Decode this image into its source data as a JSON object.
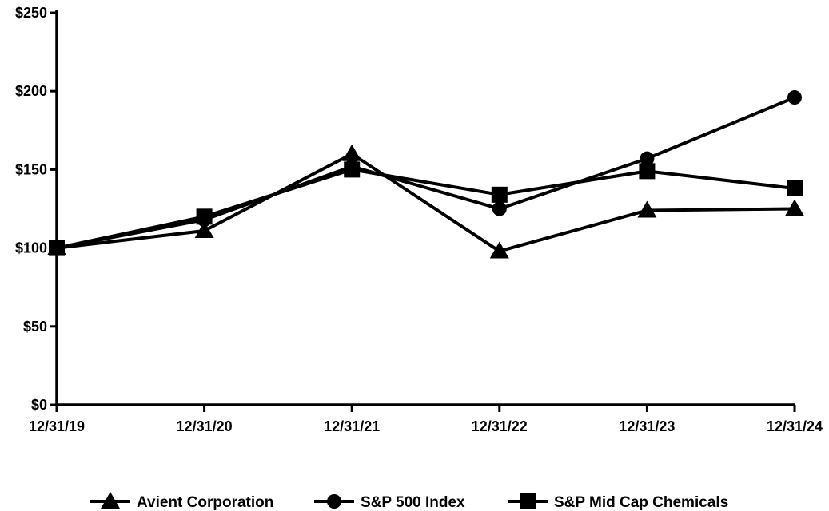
{
  "chart_data": {
    "type": "line",
    "title": "",
    "xlabel": "",
    "ylabel": "",
    "categories": [
      "12/31/19",
      "12/31/20",
      "12/31/21",
      "12/31/22",
      "12/31/23",
      "12/31/24"
    ],
    "ylim": [
      0,
      250
    ],
    "yticks": [
      0,
      50,
      100,
      150,
      200,
      250
    ],
    "ytick_labels": [
      "$0",
      "$50",
      "$100",
      "$150",
      "$200",
      "$250"
    ],
    "grid": false,
    "legend_position": "bottom",
    "series": [
      {
        "name": "Avient Corporation",
        "marker": "triangle",
        "color": "#000000",
        "values": [
          100,
          111,
          160,
          98,
          124,
          125
        ]
      },
      {
        "name": "S&P 500 Index",
        "marker": "circle",
        "color": "#000000",
        "values": [
          100,
          118,
          152,
          125,
          157,
          196
        ]
      },
      {
        "name": "S&P Mid Cap Chemicals",
        "marker": "square",
        "color": "#000000",
        "values": [
          100,
          120,
          150,
          134,
          149,
          138
        ]
      }
    ]
  }
}
